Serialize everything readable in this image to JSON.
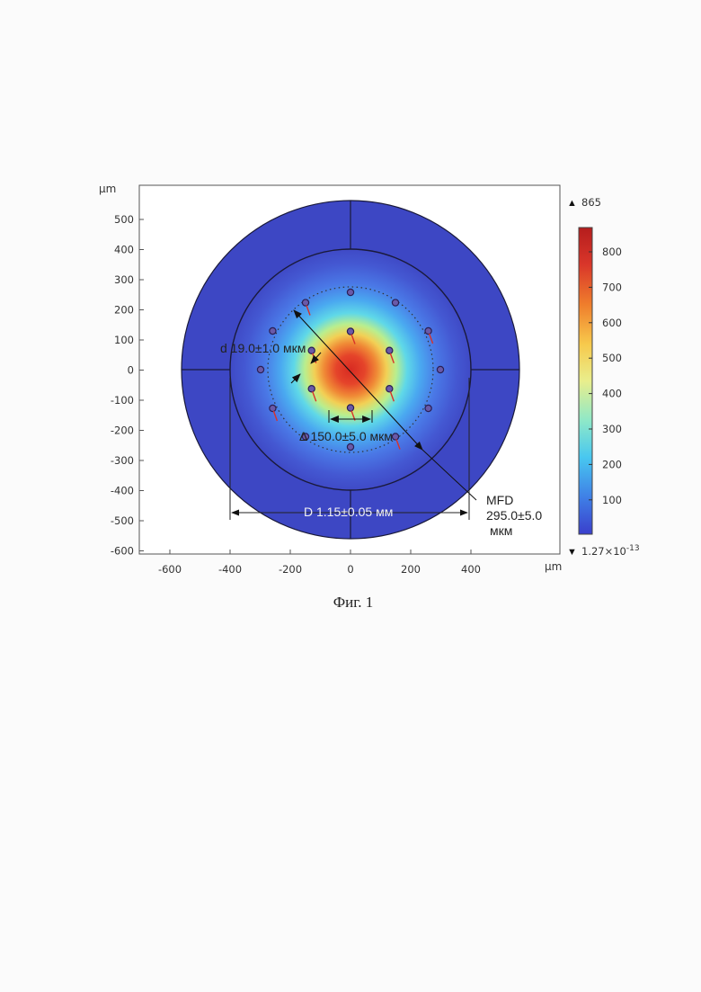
{
  "figure": {
    "caption": "Фиг. 1",
    "unit_label": "μm",
    "x_ticks": [
      "-600",
      "-400",
      "-200",
      "0",
      "200",
      "400"
    ],
    "y_ticks": [
      "500",
      "400",
      "300",
      "200",
      "100",
      "0",
      "-100",
      "-200",
      "-300",
      "-400",
      "-500",
      "-600"
    ]
  },
  "colorbar": {
    "max_label": "865",
    "min_label": "1.27×10",
    "min_exponent": "-13",
    "ticks": [
      "800",
      "700",
      "600",
      "500",
      "400",
      "300",
      "200",
      "100"
    ],
    "colors": [
      "#3a3fcc",
      "#3f7fe6",
      "#48c7f0",
      "#8ee8c8",
      "#e9ee8c",
      "#f7c94c",
      "#ef7d2c",
      "#d9362a",
      "#b51d1d"
    ]
  },
  "annotations": {
    "hole_diameter": "d 19.0±1.0 мкм",
    "pitch": "Δ 150.0±5.0 мкм",
    "mfd_title": "MFD",
    "mfd_value": "295.0±5.0",
    "mfd_unit": "мкм",
    "cladding_diameter": "D 1.15±0.05 мм"
  },
  "colors": {
    "outer_cladding": "#3d47c4",
    "core_hot": "#d52a22",
    "dotted_circle": "#333333"
  }
}
